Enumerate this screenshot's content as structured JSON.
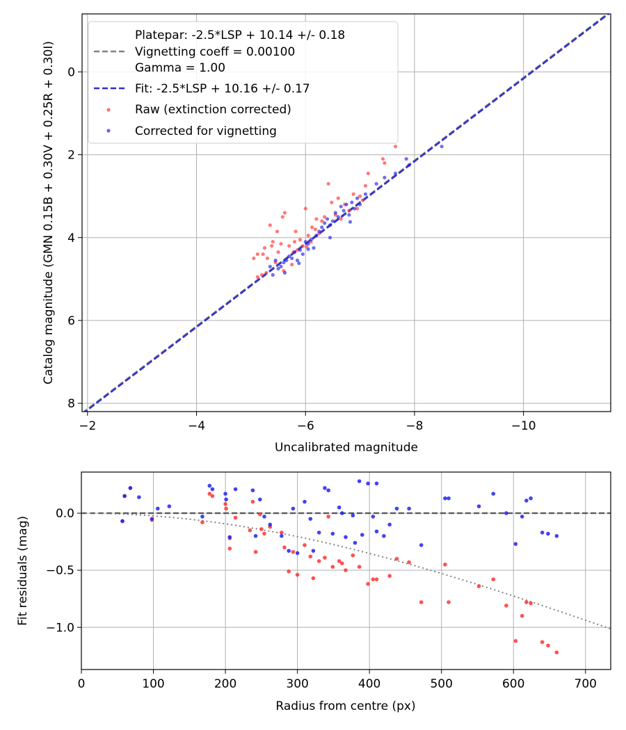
{
  "chart_data": [
    {
      "type": "scatter",
      "title": "",
      "xlabel": "Uncalibrated magnitude",
      "ylabel": "Catalog magnitude (GMN 0.15B + 0.30V + 0.25R + 0.30I)",
      "xlim": [
        -1.9,
        -11.6
      ],
      "ylim": [
        8.2,
        -1.4
      ],
      "x_ticks": [
        -2,
        -4,
        -6,
        -8,
        -10
      ],
      "x_tick_labels": [
        "−2",
        "−4",
        "−6",
        "−8",
        "−10"
      ],
      "y_ticks": [
        0,
        2,
        4,
        6,
        8
      ],
      "y_tick_labels": [
        "0",
        "2",
        "4",
        "6",
        "8"
      ],
      "grid": true,
      "legend": {
        "position": "top-left",
        "entries": [
          {
            "label_lines": [
              "Platepar: -2.5*LSP + 10.14 +/- 0.18",
              "Vignetting coeff = 0.00100",
              "Gamma = 1.00"
            ],
            "style": "gray-dashed"
          },
          {
            "label_lines": [
              "Fit: -2.5*LSP + 10.16 +/- 0.17"
            ],
            "style": "blue-dashed"
          },
          {
            "label_lines": [
              "Raw (extinction corrected)"
            ],
            "style": "red-dot"
          },
          {
            "label_lines": [
              "Corrected for vignetting"
            ],
            "style": "blue-dot"
          }
        ]
      },
      "lines": [
        {
          "name": "Platepar",
          "color": "#808080",
          "intercept": 10.14,
          "slope": 1
        },
        {
          "name": "Fit",
          "color": "#2a2ad6",
          "intercept": 10.16,
          "slope": 1
        }
      ],
      "series": [
        {
          "name": "Raw (extinction corrected)",
          "color": "#ff3333",
          "points": [
            [
              -5.12,
              4.95
            ],
            [
              -5.2,
              4.9
            ],
            [
              -5.28,
              4.85
            ],
            [
              -5.22,
              4.4
            ],
            [
              -5.12,
              4.4
            ],
            [
              -5.25,
              4.25
            ],
            [
              -5.3,
              4.5
            ],
            [
              -5.38,
              4.2
            ],
            [
              -5.4,
              4.1
            ],
            [
              -5.45,
              4.6
            ],
            [
              -5.5,
              4.35
            ],
            [
              -5.55,
              4.15
            ],
            [
              -5.62,
              3.4
            ],
            [
              -5.58,
              3.5
            ],
            [
              -5.48,
              3.85
            ],
            [
              -5.35,
              3.7
            ],
            [
              -5.7,
              4.2
            ],
            [
              -5.75,
              4.65
            ],
            [
              -5.8,
              4.1
            ],
            [
              -5.85,
              4.3
            ],
            [
              -5.9,
              4.05
            ],
            [
              -5.95,
              4.2
            ],
            [
              -5.82,
              3.85
            ],
            [
              -6.0,
              3.3
            ],
            [
              -6.05,
              3.95
            ],
            [
              -6.1,
              4.1
            ],
            [
              -6.18,
              3.8
            ],
            [
              -6.25,
              3.9
            ],
            [
              -6.3,
              3.6
            ],
            [
              -6.35,
              3.5
            ],
            [
              -6.42,
              2.7
            ],
            [
              -6.48,
              3.15
            ],
            [
              -6.55,
              3.45
            ],
            [
              -6.6,
              3.05
            ],
            [
              -6.65,
              3.55
            ],
            [
              -6.72,
              3.2
            ],
            [
              -6.8,
              3.35
            ],
            [
              -6.88,
              2.95
            ],
            [
              -6.95,
              3.3
            ],
            [
              -7.0,
              3.0
            ],
            [
              -7.05,
              3.1
            ],
            [
              -7.1,
              2.75
            ],
            [
              -7.15,
              2.45
            ],
            [
              -7.45,
              2.2
            ],
            [
              -7.42,
              2.1
            ],
            [
              -7.65,
              1.8
            ],
            [
              -5.6,
              4.8
            ],
            [
              -5.78,
              4.35
            ],
            [
              -6.02,
              4.22
            ],
            [
              -6.12,
              3.75
            ],
            [
              -5.05,
              4.5
            ],
            [
              -6.2,
              3.55
            ]
          ]
        },
        {
          "name": "Corrected for vignetting",
          "color": "#2222ee",
          "points": [
            [
              -5.55,
              4.7
            ],
            [
              -5.6,
              4.6
            ],
            [
              -5.65,
              4.55
            ],
            [
              -5.7,
              4.45
            ],
            [
              -5.4,
              4.9
            ],
            [
              -5.5,
              4.75
            ],
            [
              -5.45,
              4.55
            ],
            [
              -5.75,
              4.5
            ],
            [
              -5.8,
              4.35
            ],
            [
              -5.85,
              4.55
            ],
            [
              -5.9,
              4.3
            ],
            [
              -5.95,
              4.4
            ],
            [
              -6.0,
              4.1
            ],
            [
              -6.05,
              4.15
            ],
            [
              -6.1,
              4.05
            ],
            [
              -6.15,
              4.25
            ],
            [
              -6.2,
              3.95
            ],
            [
              -6.25,
              3.85
            ],
            [
              -6.3,
              3.75
            ],
            [
              -6.35,
              3.65
            ],
            [
              -6.4,
              3.55
            ],
            [
              -6.45,
              3.7
            ],
            [
              -6.5,
              3.6
            ],
            [
              -6.55,
              3.4
            ],
            [
              -6.6,
              3.5
            ],
            [
              -6.65,
              3.25
            ],
            [
              -6.7,
              3.35
            ],
            [
              -6.75,
              3.2
            ],
            [
              -6.8,
              3.45
            ],
            [
              -6.85,
              3.15
            ],
            [
              -6.9,
              3.3
            ],
            [
              -6.95,
              3.05
            ],
            [
              -7.0,
              3.2
            ],
            [
              -7.1,
              2.95
            ],
            [
              -7.3,
              2.7
            ],
            [
              -7.45,
              2.55
            ],
            [
              -7.65,
              2.45
            ],
            [
              -7.85,
              2.1
            ],
            [
              -7.9,
              2.25
            ],
            [
              -8.5,
              1.8
            ],
            [
              -5.35,
              4.7
            ],
            [
              -5.62,
              4.85
            ],
            [
              -6.05,
              4.28
            ],
            [
              -6.45,
              4.0
            ],
            [
              -6.82,
              3.62
            ],
            [
              -5.88,
              4.62
            ]
          ]
        }
      ]
    },
    {
      "type": "scatter",
      "title": "",
      "xlabel": "Radius from centre (px)",
      "ylabel": "Fit residuals (mag)",
      "xlim": [
        0,
        735
      ],
      "ylim": [
        -1.37,
        0.36
      ],
      "x_ticks": [
        0,
        100,
        200,
        300,
        400,
        500,
        600,
        700
      ],
      "x_tick_labels": [
        "0",
        "100",
        "200",
        "300",
        "400",
        "500",
        "600",
        "700"
      ],
      "y_ticks": [
        0.0,
        -0.5,
        -1.0
      ],
      "y_tick_labels": [
        "0.0",
        "−0.5",
        "−1.0"
      ],
      "grid": true,
      "zero_line": 0.0,
      "vignetting_curve": {
        "color": "#808080",
        "coeff": 0.001
      },
      "series": [
        {
          "name": "Raw (extinction corrected)",
          "color": "#ff3333",
          "points": [
            [
              57,
              -0.07
            ],
            [
              60,
              0.15
            ],
            [
              68,
              0.22
            ],
            [
              98,
              -0.06
            ],
            [
              168,
              -0.08
            ],
            [
              178,
              0.17
            ],
            [
              182,
              0.15
            ],
            [
              200,
              0.08
            ],
            [
              201,
              0.04
            ],
            [
              206,
              -0.22
            ],
            [
              206,
              -0.31
            ],
            [
              214,
              -0.04
            ],
            [
              234,
              -0.15
            ],
            [
              238,
              0.1
            ],
            [
              242,
              -0.34
            ],
            [
              248,
              -0.01
            ],
            [
              250,
              -0.14
            ],
            [
              254,
              -0.18
            ],
            [
              262,
              -0.12
            ],
            [
              278,
              -0.17
            ],
            [
              282,
              -0.3
            ],
            [
              288,
              -0.51
            ],
            [
              294,
              -0.34
            ],
            [
              300,
              -0.54
            ],
            [
              310,
              -0.28
            ],
            [
              318,
              -0.38
            ],
            [
              322,
              -0.57
            ],
            [
              330,
              -0.42
            ],
            [
              338,
              -0.39
            ],
            [
              343,
              -0.03
            ],
            [
              349,
              -0.47
            ],
            [
              358,
              -0.42
            ],
            [
              362,
              -0.44
            ],
            [
              367,
              -0.5
            ],
            [
              377,
              -0.37
            ],
            [
              386,
              -0.47
            ],
            [
              398,
              -0.62
            ],
            [
              405,
              -0.58
            ],
            [
              410,
              -0.58
            ],
            [
              428,
              -0.55
            ],
            [
              438,
              -0.4
            ],
            [
              455,
              -0.43
            ],
            [
              472,
              -0.78
            ],
            [
              505,
              -0.45
            ],
            [
              510,
              -0.78
            ],
            [
              552,
              -0.64
            ],
            [
              572,
              -0.58
            ],
            [
              590,
              -0.81
            ],
            [
              603,
              -1.12
            ],
            [
              612,
              -0.9
            ],
            [
              618,
              -0.78
            ],
            [
              624,
              -0.79
            ],
            [
              640,
              -1.13
            ],
            [
              648,
              -1.16
            ],
            [
              660,
              -1.22
            ]
          ]
        },
        {
          "name": "Corrected for vignetting",
          "color": "#2222ee",
          "points": [
            [
              57,
              -0.07
            ],
            [
              60,
              0.15
            ],
            [
              68,
              0.22
            ],
            [
              80,
              0.14
            ],
            [
              98,
              -0.05
            ],
            [
              106,
              0.04
            ],
            [
              122,
              0.06
            ],
            [
              168,
              -0.03
            ],
            [
              178,
              0.24
            ],
            [
              182,
              0.21
            ],
            [
              200,
              0.17
            ],
            [
              201,
              0.12
            ],
            [
              206,
              -0.21
            ],
            [
              214,
              0.21
            ],
            [
              238,
              0.2
            ],
            [
              242,
              -0.2
            ],
            [
              248,
              0.12
            ],
            [
              254,
              -0.03
            ],
            [
              262,
              -0.1
            ],
            [
              278,
              -0.2
            ],
            [
              288,
              -0.33
            ],
            [
              294,
              0.04
            ],
            [
              300,
              -0.35
            ],
            [
              310,
              0.1
            ],
            [
              318,
              -0.05
            ],
            [
              322,
              -0.33
            ],
            [
              330,
              -0.17
            ],
            [
              338,
              0.22
            ],
            [
              343,
              0.2
            ],
            [
              349,
              -0.18
            ],
            [
              358,
              0.05
            ],
            [
              362,
              0.0
            ],
            [
              367,
              -0.21
            ],
            [
              377,
              -0.02
            ],
            [
              386,
              0.28
            ],
            [
              390,
              -0.19
            ],
            [
              398,
              0.26
            ],
            [
              405,
              -0.03
            ],
            [
              410,
              0.26
            ],
            [
              428,
              -0.1
            ],
            [
              438,
              0.04
            ],
            [
              455,
              0.04
            ],
            [
              472,
              -0.28
            ],
            [
              505,
              0.13
            ],
            [
              510,
              0.13
            ],
            [
              552,
              0.06
            ],
            [
              572,
              0.17
            ],
            [
              590,
              0.0
            ],
            [
              603,
              -0.27
            ],
            [
              612,
              -0.03
            ],
            [
              618,
              0.11
            ],
            [
              624,
              0.13
            ],
            [
              640,
              -0.17
            ],
            [
              648,
              -0.18
            ],
            [
              660,
              -0.2
            ],
            [
              420,
              -0.2
            ],
            [
              380,
              -0.26
            ],
            [
              410,
              -0.16
            ]
          ]
        }
      ]
    }
  ]
}
